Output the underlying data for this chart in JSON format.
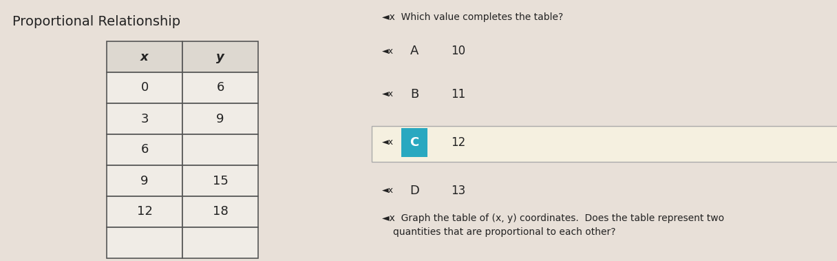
{
  "title_left": "Proportional Relationship",
  "bg_color": "#e8e0d8",
  "right_panel_bg": "#d8d0c8",
  "question1": "◄x  Which value completes the table?",
  "question2": "◄x  Graph the table of (x, y) coordinates.  Does the table represent two\n       quantities that are proportional to each other?",
  "table_x": [
    "x",
    "0",
    "3",
    "6",
    "9",
    "12"
  ],
  "table_y": [
    "y",
    "6",
    "9",
    "",
    "15",
    "18"
  ],
  "options": [
    {
      "letter": "A",
      "value": "10"
    },
    {
      "letter": "B",
      "value": "11"
    },
    {
      "letter": "C",
      "value": "12",
      "selected": true
    },
    {
      "letter": "D",
      "value": "13"
    }
  ],
  "speaker_icon": "◄x",
  "selected_bg": "#f5f0e0",
  "selected_letter_bg": "#29a8c0",
  "selected_letter_color": "#ffffff",
  "table_header_bg": "#e0d8d0",
  "table_bg": "#ffffff",
  "border_color": "#555555",
  "text_color": "#222222",
  "title_fontsize": 14,
  "body_fontsize": 11,
  "option_fontsize": 12
}
